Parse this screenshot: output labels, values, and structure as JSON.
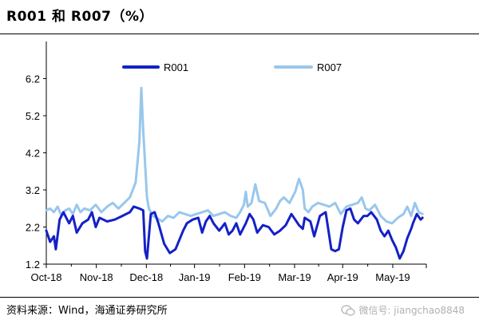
{
  "header": {
    "title": "R001 和 R007（%）"
  },
  "footer": {
    "source": "资料来源：Wind，海通证券研究所",
    "watermark": "微信号: jiangchao8848",
    "watermark_icon": "wechat-icon"
  },
  "chart_data": {
    "type": "line",
    "title": "R001 和 R007（%）",
    "xlabel": "",
    "ylabel": "",
    "ylim": [
      1.2,
      7.2
    ],
    "yticks": [
      1.2,
      2.2,
      3.2,
      4.2,
      5.2,
      6.2
    ],
    "ytick_labels": [
      "1.2",
      "2.2",
      "3.2",
      "4.2",
      "5.2",
      "6.2"
    ],
    "xlim": [
      0,
      1
    ],
    "xticks": [
      0,
      0.1317,
      0.2633,
      0.39,
      0.5217,
      0.6533,
      0.78,
      0.9117
    ],
    "xtick_labels": [
      "Oct-18",
      "Nov-18",
      "Dec-18",
      "Jan-19",
      "Feb-19",
      "Mar-19",
      "Apr-19",
      "May-19"
    ],
    "grid": false,
    "legend": "top-center",
    "series": [
      {
        "name": "R001",
        "color": "#1421c6",
        "x": [
          0.0,
          0.01,
          0.02,
          0.025,
          0.035,
          0.045,
          0.06,
          0.07,
          0.08,
          0.095,
          0.11,
          0.12,
          0.13,
          0.14,
          0.15,
          0.16,
          0.18,
          0.2,
          0.22,
          0.23,
          0.245,
          0.255,
          0.26,
          0.265,
          0.275,
          0.285,
          0.295,
          0.31,
          0.325,
          0.34,
          0.35,
          0.36,
          0.37,
          0.385,
          0.4,
          0.41,
          0.42,
          0.43,
          0.44,
          0.455,
          0.47,
          0.48,
          0.49,
          0.5,
          0.51,
          0.52,
          0.525,
          0.535,
          0.545,
          0.555,
          0.57,
          0.585,
          0.6,
          0.615,
          0.63,
          0.645,
          0.655,
          0.665,
          0.675,
          0.68,
          0.695,
          0.705,
          0.72,
          0.735,
          0.75,
          0.76,
          0.77,
          0.78,
          0.79,
          0.8,
          0.81,
          0.82,
          0.835,
          0.845,
          0.855,
          0.87,
          0.88,
          0.89,
          0.9,
          0.91,
          0.92,
          0.93,
          0.94,
          0.95,
          0.96,
          0.965,
          0.975,
          0.985,
          0.99
        ],
        "y": [
          2.1,
          1.8,
          1.95,
          1.6,
          2.4,
          2.6,
          2.3,
          2.5,
          2.05,
          2.3,
          2.4,
          2.6,
          2.2,
          2.45,
          2.4,
          2.35,
          2.4,
          2.5,
          2.6,
          2.75,
          2.7,
          2.65,
          1.55,
          1.35,
          2.55,
          2.6,
          2.3,
          1.75,
          1.5,
          1.6,
          1.85,
          2.1,
          2.3,
          2.4,
          2.45,
          2.05,
          2.35,
          2.5,
          2.3,
          2.1,
          2.3,
          2.0,
          2.1,
          2.3,
          2.0,
          2.2,
          2.3,
          2.55,
          2.4,
          2.05,
          2.25,
          2.2,
          2.0,
          2.1,
          2.25,
          2.55,
          2.4,
          2.25,
          2.15,
          2.45,
          2.35,
          1.95,
          2.5,
          2.6,
          1.6,
          1.55,
          1.6,
          2.2,
          2.65,
          2.7,
          2.4,
          2.3,
          2.5,
          2.5,
          2.6,
          2.4,
          2.1,
          1.95,
          2.1,
          1.85,
          1.65,
          1.35,
          1.55,
          1.9,
          2.15,
          2.3,
          2.55,
          2.4,
          2.45
        ]
      },
      {
        "name": "R007",
        "color": "#99c7ec",
        "x": [
          0.0,
          0.01,
          0.02,
          0.03,
          0.04,
          0.05,
          0.06,
          0.07,
          0.08,
          0.09,
          0.1,
          0.115,
          0.13,
          0.145,
          0.16,
          0.175,
          0.19,
          0.205,
          0.22,
          0.235,
          0.245,
          0.25,
          0.255,
          0.265,
          0.27,
          0.28,
          0.29,
          0.305,
          0.32,
          0.335,
          0.35,
          0.365,
          0.38,
          0.395,
          0.41,
          0.425,
          0.44,
          0.455,
          0.47,
          0.485,
          0.5,
          0.51,
          0.52,
          0.525,
          0.53,
          0.54,
          0.55,
          0.56,
          0.575,
          0.59,
          0.605,
          0.615,
          0.625,
          0.64,
          0.655,
          0.665,
          0.675,
          0.68,
          0.69,
          0.7,
          0.715,
          0.73,
          0.745,
          0.76,
          0.775,
          0.79,
          0.805,
          0.82,
          0.83,
          0.84,
          0.85,
          0.865,
          0.88,
          0.895,
          0.91,
          0.925,
          0.94,
          0.95,
          0.96,
          0.97,
          0.98,
          0.99
        ],
        "y": [
          2.65,
          2.7,
          2.6,
          2.75,
          2.5,
          2.65,
          2.7,
          2.55,
          2.8,
          2.6,
          2.7,
          2.65,
          2.8,
          2.6,
          2.75,
          2.85,
          2.7,
          2.85,
          3.0,
          3.4,
          4.5,
          5.95,
          4.8,
          3.0,
          2.7,
          2.5,
          2.45,
          2.35,
          2.5,
          2.45,
          2.6,
          2.55,
          2.5,
          2.55,
          2.6,
          2.65,
          2.5,
          2.55,
          2.6,
          2.5,
          2.45,
          2.6,
          2.8,
          3.15,
          2.75,
          2.85,
          3.35,
          2.9,
          2.85,
          2.5,
          2.7,
          2.9,
          3.0,
          2.85,
          3.15,
          3.5,
          3.2,
          2.7,
          2.6,
          2.75,
          2.85,
          2.8,
          2.75,
          2.85,
          2.55,
          2.75,
          2.8,
          2.85,
          3.0,
          2.7,
          2.65,
          2.8,
          2.5,
          2.35,
          2.3,
          2.45,
          2.55,
          2.75,
          2.5,
          2.85,
          2.6,
          2.55
        ]
      }
    ]
  }
}
